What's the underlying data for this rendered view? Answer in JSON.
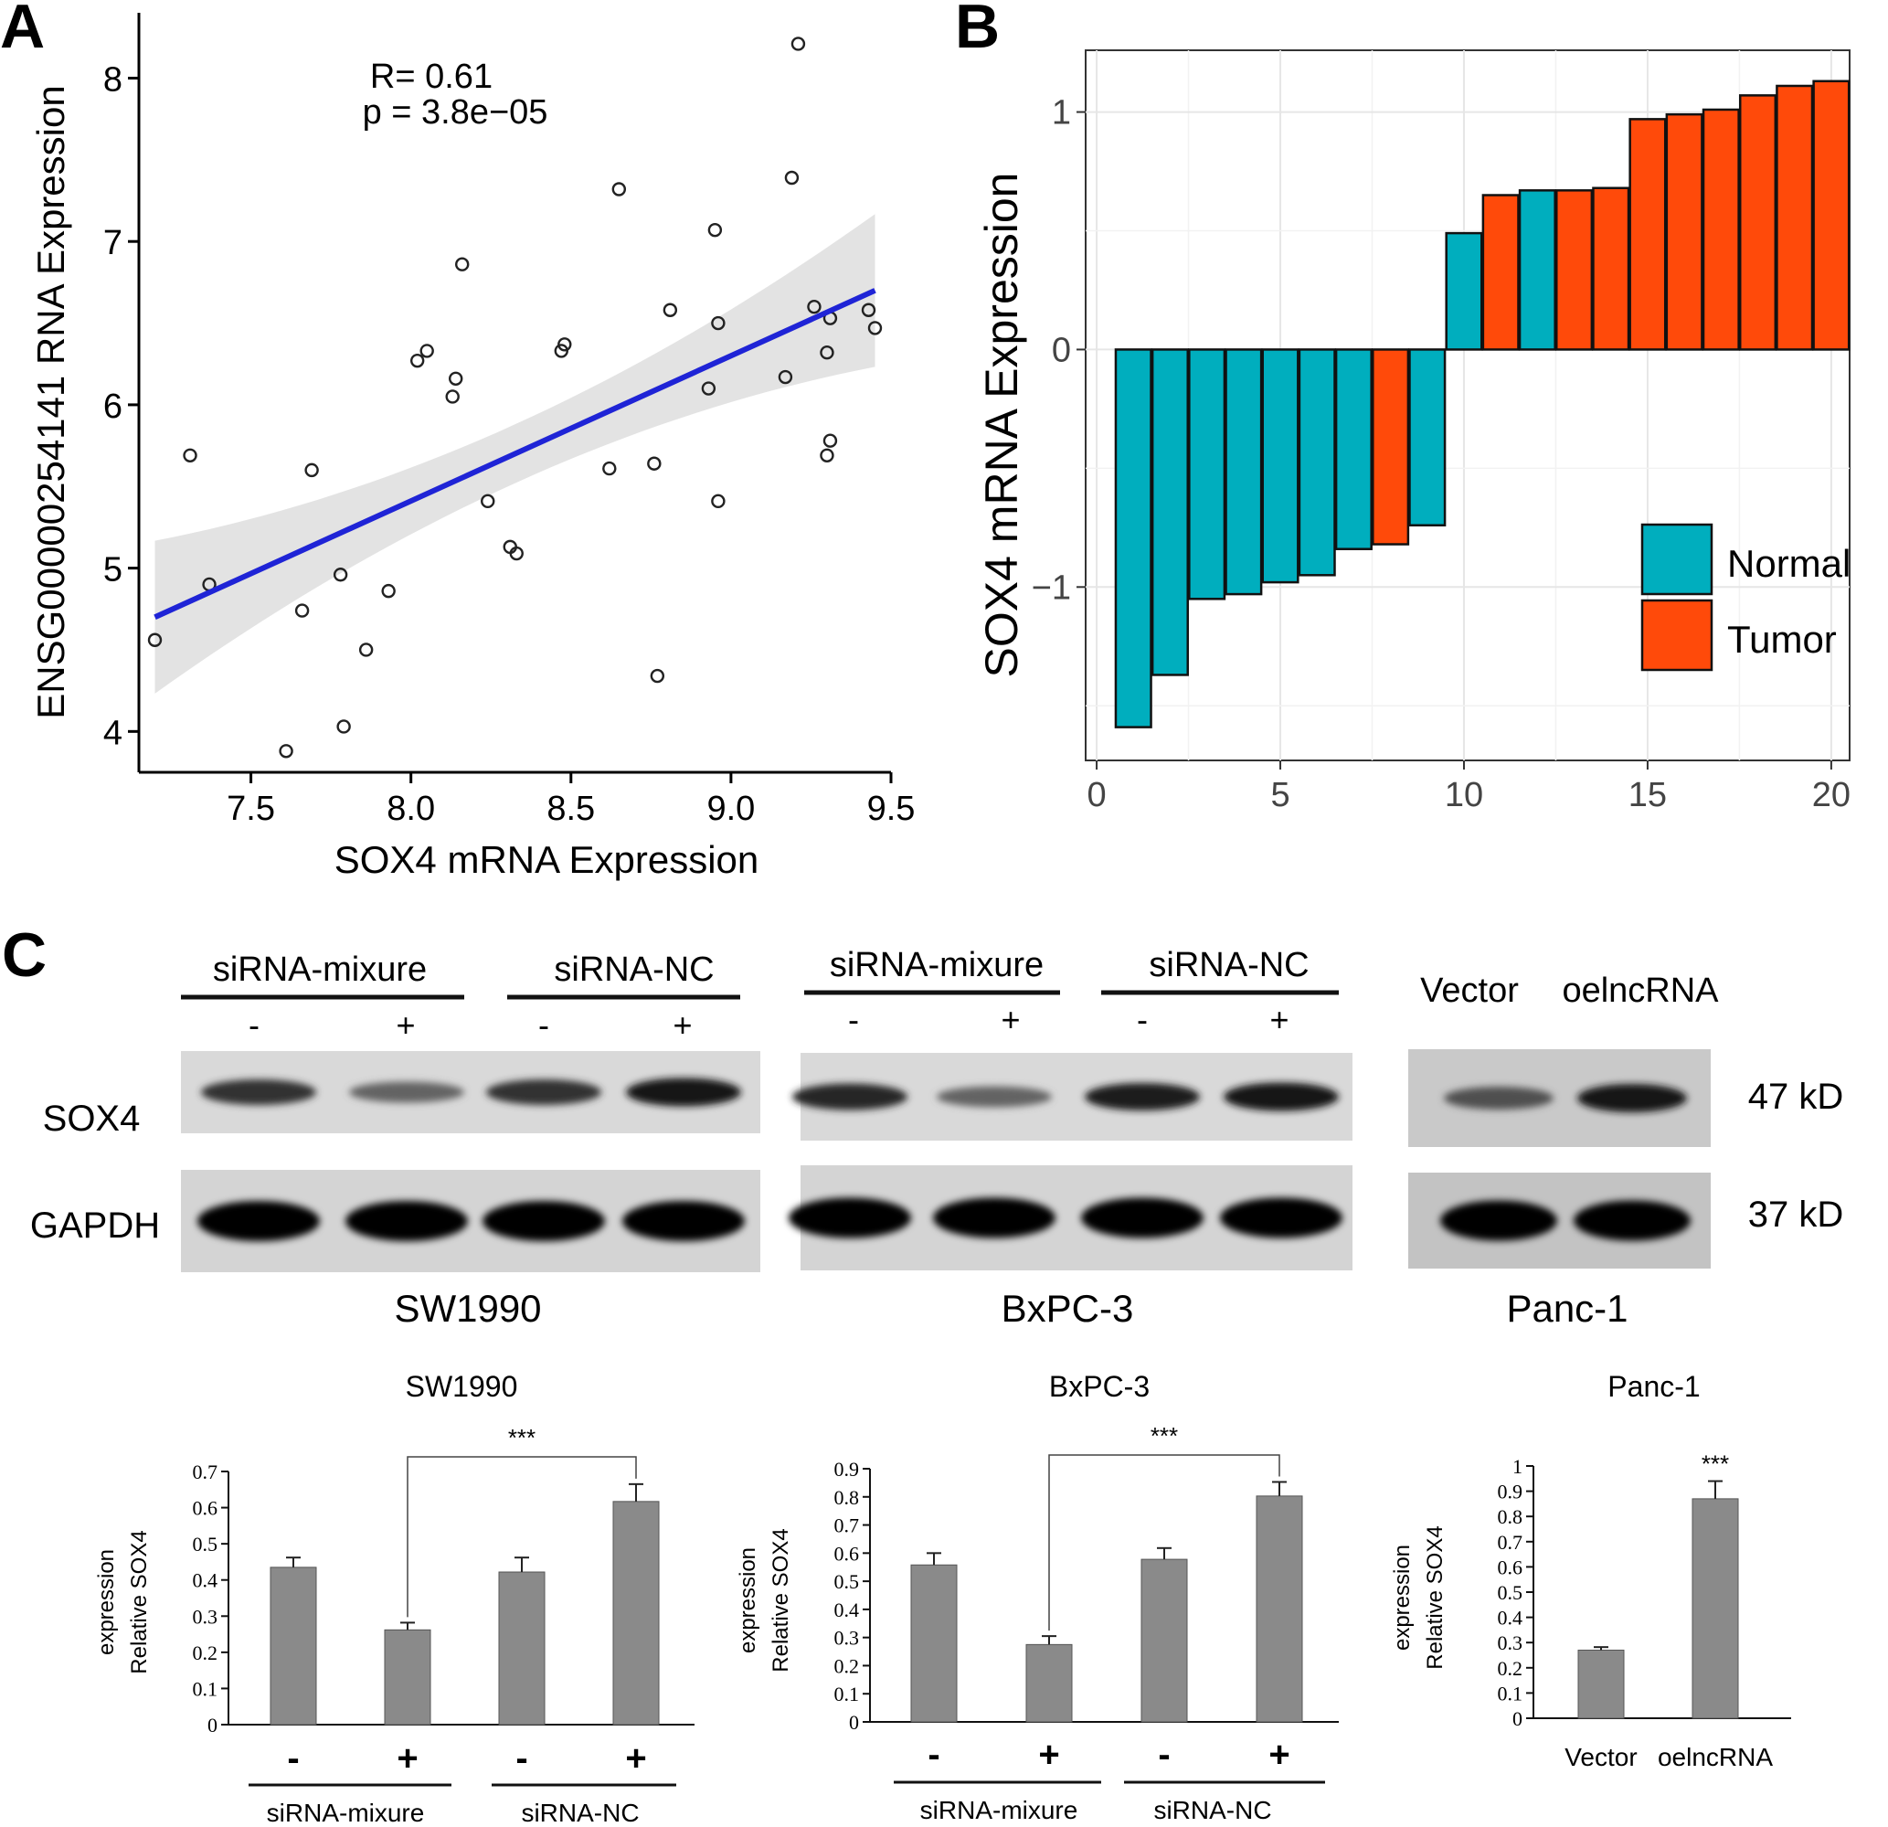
{
  "panel_labels": {
    "a": "A",
    "b": "B",
    "c": "C"
  },
  "chart_data": [
    {
      "id": "A",
      "type": "scatter",
      "xlabel": "SOX4 mRNA Expression",
      "ylabel": "ENSG00000254141 RNA Expression",
      "xlim": [
        7.15,
        9.5
      ],
      "ylim": [
        3.75,
        8.4
      ],
      "xticks": [
        "7.5",
        "8.0",
        "8.5",
        "9.0",
        "9.5"
      ],
      "yticks": [
        "4",
        "5",
        "6",
        "7",
        "8"
      ],
      "annotation": [
        "R= 0.61",
        "p = 3.8e−05"
      ],
      "fit_line": {
        "x": [
          7.2,
          9.45
        ],
        "y": [
          4.7,
          6.7
        ],
        "color": "#1f24d6"
      },
      "confidence_band_color": "#e3e3e3",
      "points": {
        "x": [
          7.2,
          7.31,
          7.37,
          7.61,
          7.66,
          7.69,
          7.78,
          7.79,
          7.86,
          7.93,
          8.02,
          8.05,
          8.13,
          8.14,
          8.16,
          8.24,
          8.31,
          8.33,
          8.47,
          8.48,
          8.62,
          8.65,
          8.76,
          8.77,
          8.81,
          8.93,
          8.95,
          8.96,
          8.96,
          9.17,
          9.19,
          9.21,
          9.26,
          9.3,
          9.3,
          9.31,
          9.31,
          9.43,
          9.45
        ],
        "y": [
          4.56,
          5.69,
          4.9,
          3.88,
          4.74,
          5.6,
          4.96,
          4.03,
          4.5,
          4.86,
          6.27,
          6.33,
          6.05,
          6.16,
          6.86,
          5.41,
          5.13,
          5.09,
          6.33,
          6.37,
          5.61,
          7.32,
          5.64,
          4.34,
          6.58,
          6.1,
          7.07,
          6.5,
          5.41,
          6.17,
          7.39,
          8.21,
          6.6,
          6.32,
          5.69,
          5.78,
          6.53,
          6.58,
          6.47
        ]
      }
    },
    {
      "id": "B",
      "type": "bar",
      "ylabel": "SOX4 mRNA Expression",
      "xlim": [
        -0.3,
        20.5
      ],
      "ylim": [
        -1.73,
        1.26
      ],
      "xticks": [
        "0",
        "5",
        "10",
        "15",
        "20"
      ],
      "yticks": [
        "−1",
        "0",
        "1"
      ],
      "legend_position": "bottom-right",
      "series": [
        {
          "name": "Normal",
          "color": "#00aebe"
        },
        {
          "name": "Tumor",
          "color": "#ff4a0a"
        }
      ],
      "x": [
        1,
        2,
        3,
        4,
        5,
        6,
        7,
        8,
        9,
        10,
        11,
        12,
        13,
        14,
        15,
        16,
        17,
        18,
        19,
        20
      ],
      "values": [
        -1.59,
        -1.37,
        -1.05,
        -1.03,
        -0.98,
        -0.95,
        -0.84,
        -0.82,
        -0.74,
        0.49,
        0.65,
        0.67,
        0.67,
        0.68,
        0.97,
        0.99,
        1.01,
        1.07,
        1.11,
        1.13
      ],
      "groups": [
        "Normal",
        "Normal",
        "Normal",
        "Normal",
        "Normal",
        "Normal",
        "Normal",
        "Tumor",
        "Normal",
        "Normal",
        "Tumor",
        "Normal",
        "Tumor",
        "Tumor",
        "Tumor",
        "Tumor",
        "Tumor",
        "Tumor",
        "Tumor",
        "Tumor"
      ]
    },
    {
      "id": "C1",
      "type": "bar",
      "title": "SW1990",
      "ylabel": [
        "Relative SOX4",
        "expression"
      ],
      "ylim": [
        0,
        0.7
      ],
      "yticks": [
        "0",
        "0.1",
        "0.2",
        "0.3",
        "0.4",
        "0.5",
        "0.6",
        "0.7"
      ],
      "categories": [
        "-",
        "+",
        "-",
        "+"
      ],
      "group_labels": [
        "siRNA-mixure",
        "siRNA-NC"
      ],
      "values": [
        0.435,
        0.262,
        0.422,
        0.617
      ],
      "errors": [
        0.027,
        0.02,
        0.04,
        0.048
      ],
      "significance": {
        "text": "***",
        "from": 1,
        "to": 3
      },
      "color": "#8a8a8a"
    },
    {
      "id": "C2",
      "type": "bar",
      "title": "BxPC-3",
      "ylabel": [
        "Relative SOX4",
        "expression"
      ],
      "ylim": [
        0,
        0.9
      ],
      "yticks": [
        "0",
        "0.1",
        "0.2",
        "0.3",
        "0.4",
        "0.5",
        "0.6",
        "0.7",
        "0.8",
        "0.9"
      ],
      "categories": [
        "-",
        "+",
        "-",
        "+"
      ],
      "group_labels": [
        "siRNA-mixure",
        "siRNA-NC"
      ],
      "values": [
        0.558,
        0.275,
        0.578,
        0.803
      ],
      "errors": [
        0.042,
        0.03,
        0.04,
        0.05
      ],
      "significance": {
        "text": "***",
        "from": 1,
        "to": 3
      },
      "color": "#8a8a8a"
    },
    {
      "id": "C3",
      "type": "bar",
      "title": "Panc-1",
      "ylabel": [
        "Relative SOX4",
        "expression"
      ],
      "ylim": [
        0,
        1
      ],
      "yticks": [
        "0",
        "0.1",
        "0.2",
        "0.3",
        "0.4",
        "0.5",
        "0.6",
        "0.7",
        "0.8",
        "0.9",
        "1"
      ],
      "categories": [
        "Vector",
        "oelncRNA"
      ],
      "values": [
        0.27,
        0.87
      ],
      "errors": [
        0.012,
        0.07
      ],
      "significance": {
        "text": "***",
        "on": 1
      },
      "color": "#8a8a8a"
    }
  ],
  "western_blots": {
    "rows": [
      "SOX4",
      "GAPDH"
    ],
    "sizes": [
      "47 kD",
      "37 kD"
    ],
    "blots": [
      {
        "cell_line": "SW1990",
        "groups": [
          "siRNA-mixure",
          "siRNA-NC"
        ],
        "signs": [
          "-",
          "+",
          "-",
          "+"
        ],
        "sox4_intensity": [
          0.8,
          0.55,
          0.8,
          0.95
        ],
        "gapdh_intensity": [
          1,
          1,
          1,
          1
        ]
      },
      {
        "cell_line": "BxPC-3",
        "groups": [
          "siRNA-mixure",
          "siRNA-NC"
        ],
        "signs": [
          "-",
          "+",
          "-",
          "+"
        ],
        "sox4_intensity": [
          0.85,
          0.55,
          0.9,
          0.95
        ],
        "gapdh_intensity": [
          1,
          1,
          1,
          1
        ]
      },
      {
        "cell_line": "Panc-1",
        "groups": [
          "Vector",
          "oelncRNA"
        ],
        "sox4_intensity": [
          0.65,
          0.95
        ],
        "gapdh_intensity": [
          1,
          1
        ]
      }
    ]
  }
}
